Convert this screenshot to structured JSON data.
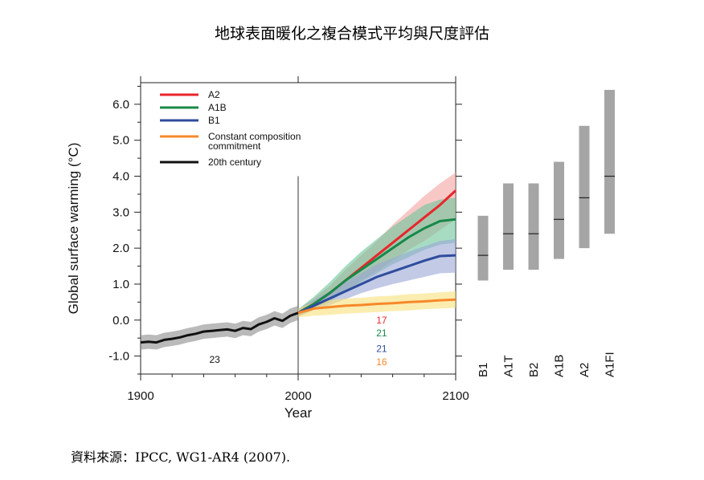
{
  "page": {
    "title": "地球表面暖化之複合模式平均與尺度評估",
    "source": "資料來源：IPCC, WG1-AR4 (2007)."
  },
  "chart_data": {
    "type": "line",
    "ylabel": "Global surface warming (°C)",
    "xlabel": "Year",
    "xlim": [
      1900,
      2100
    ],
    "ylim": [
      -1.5,
      6.6
    ],
    "xticks": [
      1900,
      2000,
      2100
    ],
    "yticks": [
      -1.0,
      0.0,
      1.0,
      2.0,
      3.0,
      4.0,
      5.0,
      6.0
    ],
    "ytick_labels": [
      "-1.0",
      "0.0",
      "1.0",
      "2.0",
      "3.0",
      "4.0",
      "5.0",
      "6.0"
    ],
    "divider_year": 2000,
    "legend": [
      {
        "label": "A2",
        "color": "#e8262b"
      },
      {
        "label": "A1B",
        "color": "#17894a"
      },
      {
        "label": "B1",
        "color": "#2f4d9e"
      },
      {
        "label": "Constant composition",
        "label2": "commitment",
        "color": "#f7882b"
      },
      {
        "label": "20th century",
        "color": "#111111"
      }
    ],
    "series": [
      {
        "name": "20th century",
        "color": "#111111",
        "band_color": "#8c8c8c",
        "x": [
          1900,
          1905,
          1910,
          1915,
          1920,
          1925,
          1930,
          1935,
          1940,
          1945,
          1950,
          1955,
          1960,
          1965,
          1970,
          1975,
          1980,
          1985,
          1990,
          1995,
          2000
        ],
        "y": [
          -0.62,
          -0.6,
          -0.62,
          -0.55,
          -0.52,
          -0.48,
          -0.42,
          -0.38,
          -0.32,
          -0.3,
          -0.28,
          -0.26,
          -0.3,
          -0.22,
          -0.25,
          -0.12,
          -0.05,
          0.05,
          -0.02,
          0.12,
          0.2
        ],
        "band": 0.2
      },
      {
        "name": "A2",
        "color": "#e8262b",
        "band_color": "#f4a3a1",
        "x": [
          2000,
          2010,
          2020,
          2030,
          2040,
          2050,
          2060,
          2070,
          2080,
          2090,
          2100
        ],
        "y": [
          0.2,
          0.45,
          0.75,
          1.1,
          1.45,
          1.8,
          2.15,
          2.5,
          2.85,
          3.2,
          3.6
        ],
        "band_lo": [
          0.1,
          0.3,
          0.55,
          0.8,
          1.1,
          1.35,
          1.65,
          1.95,
          2.2,
          2.5,
          2.8
        ],
        "band_hi": [
          0.3,
          0.6,
          0.95,
          1.4,
          1.8,
          2.2,
          2.65,
          3.05,
          3.45,
          3.8,
          4.1
        ]
      },
      {
        "name": "A1B",
        "color": "#17894a",
        "band_color": "#6cc49a",
        "x": [
          2000,
          2010,
          2020,
          2030,
          2040,
          2050,
          2060,
          2070,
          2080,
          2090,
          2100
        ],
        "y": [
          0.2,
          0.45,
          0.75,
          1.1,
          1.4,
          1.7,
          2.0,
          2.3,
          2.55,
          2.75,
          2.8
        ],
        "band_lo": [
          0.1,
          0.3,
          0.5,
          0.8,
          1.05,
          1.3,
          1.55,
          1.75,
          1.95,
          2.1,
          2.15
        ],
        "band_hi": [
          0.3,
          0.65,
          1.05,
          1.5,
          1.9,
          2.25,
          2.6,
          2.9,
          3.2,
          3.35,
          3.4
        ]
      },
      {
        "name": "B1",
        "color": "#2f4d9e",
        "band_color": "#9aa6d6",
        "x": [
          2000,
          2010,
          2020,
          2030,
          2040,
          2050,
          2060,
          2070,
          2080,
          2090,
          2100
        ],
        "y": [
          0.2,
          0.4,
          0.6,
          0.8,
          1.0,
          1.2,
          1.35,
          1.5,
          1.65,
          1.78,
          1.8
        ],
        "band_lo": [
          0.1,
          0.28,
          0.42,
          0.58,
          0.75,
          0.88,
          1.0,
          1.1,
          1.2,
          1.3,
          1.32
        ],
        "band_hi": [
          0.3,
          0.55,
          0.8,
          1.05,
          1.3,
          1.55,
          1.72,
          1.9,
          2.05,
          2.2,
          2.25
        ]
      },
      {
        "name": "Constant composition commitment",
        "color": "#f7882b",
        "band_color": "#f7e17a",
        "x": [
          2000,
          2010,
          2020,
          2030,
          2040,
          2050,
          2060,
          2070,
          2080,
          2090,
          2100
        ],
        "y": [
          0.2,
          0.32,
          0.36,
          0.4,
          0.42,
          0.45,
          0.47,
          0.5,
          0.52,
          0.55,
          0.57
        ],
        "band_lo": [
          0.08,
          0.12,
          0.15,
          0.18,
          0.2,
          0.22,
          0.25,
          0.27,
          0.3,
          0.32,
          0.34
        ],
        "band_hi": [
          0.32,
          0.5,
          0.56,
          0.6,
          0.62,
          0.66,
          0.68,
          0.72,
          0.74,
          0.77,
          0.8
        ]
      }
    ],
    "model_counts": [
      {
        "text": "23",
        "color": "#111111",
        "x": 1947,
        "y": -1.1
      },
      {
        "text": "17",
        "color": "#e8262b",
        "x": 2053,
        "y": 0.0
      },
      {
        "text": "21",
        "color": "#17894a",
        "x": 2053,
        "y": -0.36
      },
      {
        "text": "21",
        "color": "#2f4d9e",
        "x": 2053,
        "y": -0.8
      },
      {
        "text": "16",
        "color": "#f7882b",
        "x": 2053,
        "y": -1.16
      }
    ],
    "scenario_ranges": [
      {
        "label": "B1",
        "low": 1.1,
        "best": 1.8,
        "high": 2.9
      },
      {
        "label": "A1T",
        "low": 1.4,
        "best": 2.4,
        "high": 3.8
      },
      {
        "label": "B2",
        "low": 1.4,
        "best": 2.4,
        "high": 3.8
      },
      {
        "label": "A1B",
        "low": 1.7,
        "best": 2.8,
        "high": 4.4
      },
      {
        "label": "A2",
        "low": 2.0,
        "best": 3.4,
        "high": 5.4
      },
      {
        "label": "A1FI",
        "low": 2.4,
        "best": 4.0,
        "high": 6.4
      }
    ]
  }
}
